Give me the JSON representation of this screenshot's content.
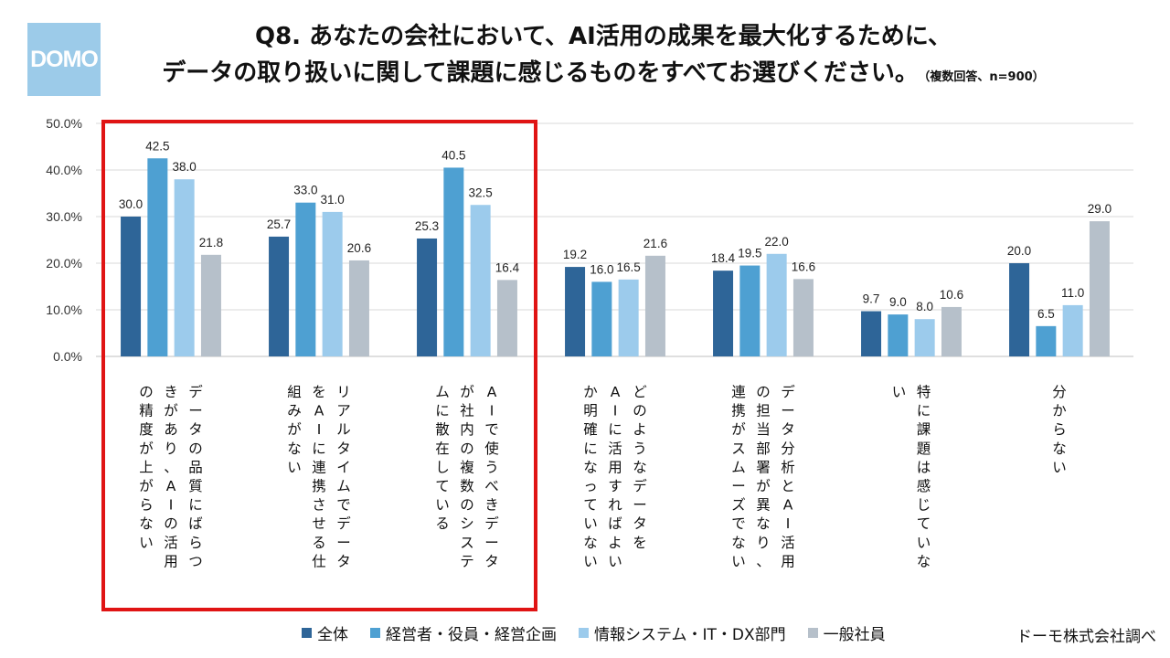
{
  "logo_text": "DOMO",
  "title_line1": "Q8. あなたの会社において、AI活用の成果を最大化するために、",
  "title_line2": "データの取り扱いに関して課題に感じるものをすべてお選びください。",
  "title_note": "（複数回答、n=900）",
  "source": "ドーモ株式会社調べ",
  "chart_data": {
    "type": "bar",
    "ylim": [
      0,
      50
    ],
    "yticks": [
      "0.0%",
      "10.0%",
      "20.0%",
      "30.0%",
      "40.0%",
      "50.0%"
    ],
    "grid": true,
    "legend_position": "bottom",
    "categories": [
      "データの品質にばらつきがあり、AIの活用の精度が上がらない",
      "リアルタイムでデータをAIに連携させる仕組みがない",
      "AIで使うべきデータが社内の複数のシステムに散在している",
      "どのようなデータをAIに活用すればよいか明確になっていない",
      "データ分析とAI活用の担当部署が異なり、連携がスムーズでない",
      "特に課題は感じていない",
      "分からない"
    ],
    "category_columns": [
      [
        "データの品質にばらつ",
        "きがあり、AIの活用",
        "の精度が上がらない"
      ],
      [
        "リアルタイムでデータ",
        "をAIに連携させる仕",
        "組みがない"
      ],
      [
        "AIで使うべきデータ",
        "が社内の複数のシステ",
        "ムに散在している"
      ],
      [
        "どのようなデータを",
        "AIに活用すればよい",
        "か明確になっていない"
      ],
      [
        "データ分析とAI活用",
        "の担当部署が異なり、",
        "連携がスムーズでない"
      ],
      [
        "特に課題は感じていな",
        "い"
      ],
      [
        "分からない"
      ]
    ],
    "series": [
      {
        "name": "全体",
        "color": "#2e6598",
        "values": [
          30.0,
          25.7,
          25.3,
          19.2,
          18.4,
          9.7,
          20.0
        ],
        "labels": [
          "30.0",
          "25.7",
          "25.3",
          "19.2",
          "18.4",
          "9.7",
          "20.0"
        ]
      },
      {
        "name": "経営者・役員・経営企画",
        "color": "#4ea0d2",
        "values": [
          42.5,
          33.0,
          40.5,
          16.0,
          19.5,
          9.0,
          6.5
        ],
        "labels": [
          "42.5",
          "33.0",
          "40.5",
          "16.0",
          "19.5",
          "9.0",
          "6.5"
        ]
      },
      {
        "name": "情報システム・IT・DX部門",
        "color": "#9ccbec",
        "values": [
          38.0,
          31.0,
          32.5,
          16.5,
          22.0,
          8.0,
          11.0
        ],
        "labels": [
          "38.0",
          "31.0",
          "32.5",
          "16.5",
          "22.0",
          "8.0",
          "11.0"
        ]
      },
      {
        "name": "一般社員",
        "color": "#b6c0ca",
        "values": [
          21.8,
          20.6,
          16.4,
          21.6,
          16.6,
          10.6,
          29.0
        ],
        "labels": [
          "21.8",
          "20.6",
          "16.4",
          "21.6",
          "16.6",
          "10.6",
          "29.0"
        ]
      }
    ],
    "highlight": {
      "label": "categories 1-3 highlighted",
      "color": "#e01414"
    }
  }
}
